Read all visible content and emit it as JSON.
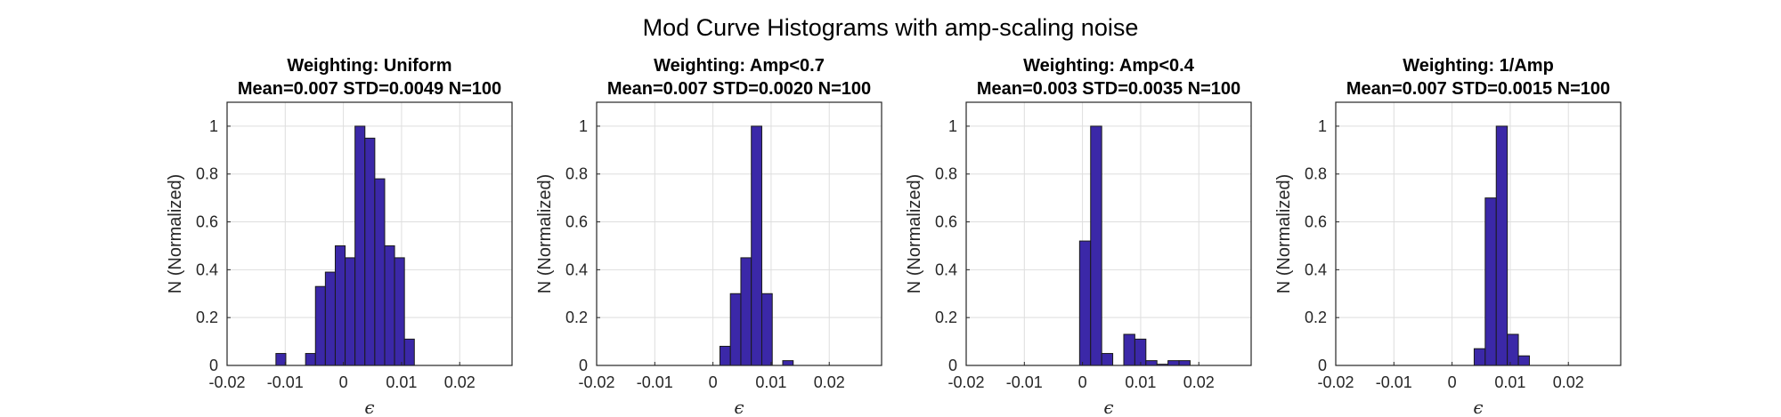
{
  "figure": {
    "title": "Mod Curve Histograms with amp-scaling noise",
    "bar_color": "#3b28a8",
    "bar_edge": "#1a1a1a"
  },
  "chart_data": [
    {
      "type": "bar",
      "title_line1": "Weighting: Uniform",
      "title_line2": "Mean=0.007 STD=0.0049 N=100",
      "xlabel": "ϵ",
      "ylabel": "N (Normalized)",
      "xlim": [
        -0.02,
        0.029
      ],
      "ylim": [
        0,
        1.1
      ],
      "xticks": [
        -0.02,
        -0.01,
        0,
        0.01,
        0.02
      ],
      "xtick_labels": [
        "-0.02",
        "-0.01",
        "0",
        "0.01",
        "0.02"
      ],
      "yticks": [
        0,
        0.2,
        0.4,
        0.6,
        0.8,
        1
      ],
      "ytick_labels": [
        "0",
        "0.2",
        "0.4",
        "0.6",
        "0.8",
        "1"
      ],
      "grid": true,
      "bin_width": 0.0017,
      "bin_start": -0.0116,
      "values": [
        0.05,
        0,
        0,
        0.05,
        0.33,
        0.39,
        0.5,
        0.45,
        1.0,
        0.95,
        0.78,
        0.5,
        0.45,
        0.11
      ]
    },
    {
      "type": "bar",
      "title_line1": "Weighting: Amp<0.7",
      "title_line2": "Mean=0.007 STD=0.0020 N=100",
      "xlabel": "ϵ",
      "ylabel": "N (Normalized)",
      "xlim": [
        -0.02,
        0.029
      ],
      "ylim": [
        0,
        1.1
      ],
      "xticks": [
        -0.02,
        -0.01,
        0,
        0.01,
        0.02
      ],
      "xtick_labels": [
        "-0.02",
        "-0.01",
        "0",
        "0.01",
        "0.02"
      ],
      "yticks": [
        0,
        0.2,
        0.4,
        0.6,
        0.8,
        1
      ],
      "ytick_labels": [
        "0",
        "0.2",
        "0.4",
        "0.6",
        "0.8",
        "1"
      ],
      "grid": true,
      "bin_width": 0.0018,
      "bin_start": 0.0012,
      "values": [
        0.08,
        0.3,
        0.45,
        1.0,
        0.3,
        0,
        0.02
      ]
    },
    {
      "type": "bar",
      "title_line1": "Weighting: Amp<0.4",
      "title_line2": "Mean=0.003 STD=0.0035 N=100",
      "xlabel": "ϵ",
      "ylabel": "N (Normalized)",
      "xlim": [
        -0.02,
        0.029
      ],
      "ylim": [
        0,
        1.1
      ],
      "xticks": [
        -0.02,
        -0.01,
        0,
        0.01,
        0.02
      ],
      "xtick_labels": [
        "-0.02",
        "-0.01",
        "0",
        "0.01",
        "0.02"
      ],
      "yticks": [
        0,
        0.2,
        0.4,
        0.6,
        0.8,
        1
      ],
      "ytick_labels": [
        "0",
        "0.2",
        "0.4",
        "0.6",
        "0.8",
        "1"
      ],
      "grid": true,
      "bin_width": 0.0019,
      "bin_start": -0.0005,
      "values": [
        0.52,
        1.0,
        0.05,
        0,
        0.13,
        0.11,
        0.02,
        0.005,
        0.02,
        0.02
      ]
    },
    {
      "type": "bar",
      "title_line1": "Weighting: 1/Amp",
      "title_line2": "Mean=0.007 STD=0.0015 N=100",
      "xlabel": "ϵ",
      "ylabel": "N (Normalized)",
      "xlim": [
        -0.02,
        0.029
      ],
      "ylim": [
        0,
        1.1
      ],
      "xticks": [
        -0.02,
        -0.01,
        0,
        0.01,
        0.02
      ],
      "xtick_labels": [
        "-0.02",
        "-0.01",
        "0",
        "0.01",
        "0.02"
      ],
      "yticks": [
        0,
        0.2,
        0.4,
        0.6,
        0.8,
        1
      ],
      "ytick_labels": [
        "0",
        "0.2",
        "0.4",
        "0.6",
        "0.8",
        "1"
      ],
      "grid": true,
      "bin_width": 0.0019,
      "bin_start": 0.0038,
      "values": [
        0.07,
        0.7,
        1.0,
        0.13,
        0.04
      ]
    }
  ]
}
